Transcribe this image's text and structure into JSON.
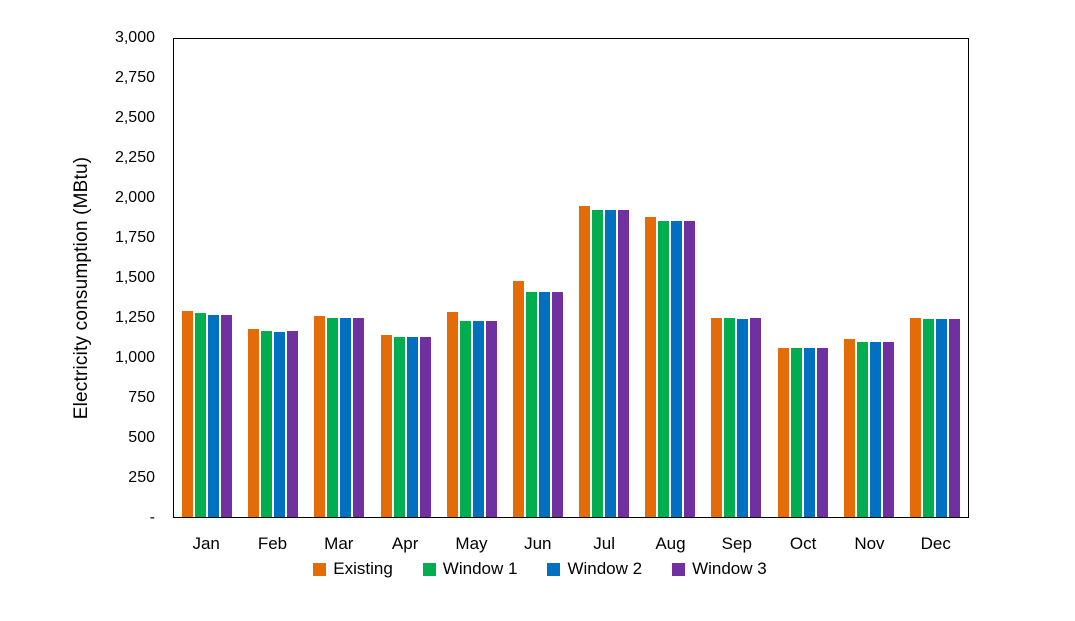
{
  "chart_data": {
    "type": "bar",
    "title": "",
    "xlabel": "",
    "ylabel": "Electricity consumption (MBtu)",
    "ylim": [
      0,
      3000
    ],
    "y_tick_interval": 250,
    "y_tick_labels_top_to_bottom": [
      "3,000",
      "2,750",
      "2,500",
      "2,250",
      "2,000",
      "1,750",
      "1,500",
      "1,250",
      "1,000",
      "750",
      "500",
      "250",
      "-"
    ],
    "grid": false,
    "legend_position": "bottom",
    "axis_frame_color": "#000000",
    "categories": [
      "Jan",
      "Feb",
      "Mar",
      "Apr",
      "May",
      "Jun",
      "Jul",
      "Aug",
      "Sep",
      "Oct",
      "Nov",
      "Dec"
    ],
    "series": [
      {
        "name": "Existing",
        "color": "#E36C09",
        "values": [
          1295,
          1180,
          1260,
          1140,
          1285,
          1480,
          1955,
          1885,
          1250,
          1060,
          1115,
          1250
        ]
      },
      {
        "name": "Window 1",
        "color": "#00AE50",
        "values": [
          1280,
          1170,
          1250,
          1130,
          1230,
          1415,
          1925,
          1860,
          1250,
          1060,
          1100,
          1240
        ]
      },
      {
        "name": "Window 2",
        "color": "#0070C0",
        "values": [
          1270,
          1160,
          1250,
          1130,
          1230,
          1415,
          1925,
          1860,
          1245,
          1060,
          1100,
          1240
        ]
      },
      {
        "name": "Window 3",
        "color": "#7030A0",
        "values": [
          1270,
          1170,
          1250,
          1130,
          1230,
          1415,
          1925,
          1860,
          1250,
          1060,
          1100,
          1240
        ]
      }
    ]
  }
}
